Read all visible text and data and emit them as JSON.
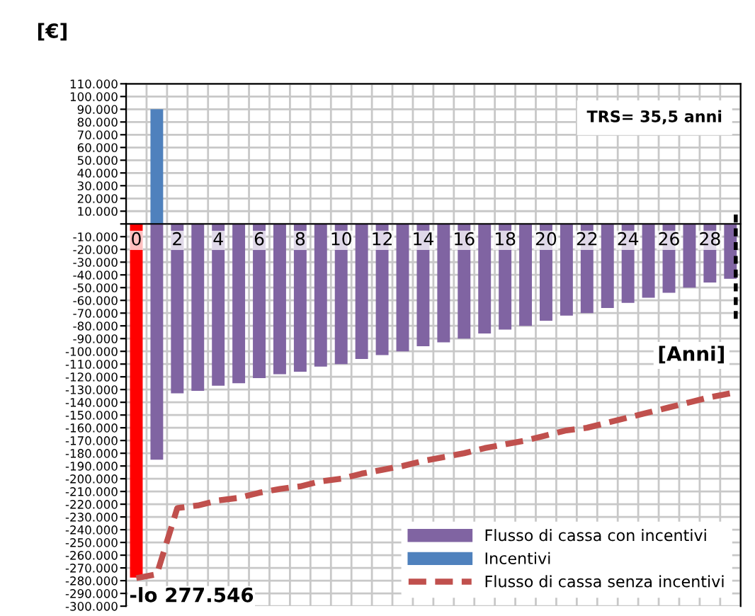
{
  "chart_data": {
    "type": "bar",
    "xlabel": "[Anni]",
    "ylabel": "[€]",
    "categories": [
      "0",
      null,
      "2",
      null,
      "4",
      null,
      "6",
      null,
      "8",
      null,
      "10",
      null,
      "12",
      null,
      "14",
      null,
      "16",
      null,
      "18",
      null,
      "20",
      null,
      "22",
      null,
      "24",
      null,
      "26",
      null,
      "28",
      null
    ],
    "series": [
      {
        "name": "Flusso di cassa con incentivi",
        "color": "#8064a2",
        "colors": [
          "#ff0000",
          "#8064a2",
          "#8064a2",
          "#8064a2",
          "#8064a2",
          "#8064a2",
          "#8064a2",
          "#8064a2",
          "#8064a2",
          "#8064a2",
          "#8064a2",
          "#8064a2",
          "#8064a2",
          "#8064a2",
          "#8064a2",
          "#8064a2",
          "#8064a2",
          "#8064a2",
          "#8064a2",
          "#8064a2",
          "#8064a2",
          "#8064a2",
          "#8064a2",
          "#8064a2",
          "#8064a2",
          "#8064a2",
          "#8064a2",
          "#8064a2",
          "#8064a2",
          "#8064a2"
        ],
        "values": [
          -277546,
          -185000,
          -133000,
          -131000,
          -127000,
          -125000,
          -121000,
          -118000,
          -116000,
          -112000,
          -110000,
          -106000,
          -103000,
          -100000,
          -96000,
          -93000,
          -90000,
          -86000,
          -83000,
          -80000,
          -76000,
          -72000,
          -70000,
          -66000,
          -62000,
          -58000,
          -54000,
          -50000,
          -46000,
          -43000
        ]
      },
      {
        "name": "Incentivi",
        "color": "#4f81bd",
        "values": [
          null,
          90000,
          null,
          null,
          null,
          null,
          null,
          null,
          null,
          null,
          null,
          null,
          null,
          null,
          null,
          null,
          null,
          null,
          null,
          null,
          null,
          null,
          null,
          null,
          null,
          null,
          null,
          null,
          null,
          null
        ]
      },
      {
        "name": "Flusso di cassa senza incentivi",
        "type": "line",
        "line_style": "dashed",
        "color": "#c0504d",
        "values": [
          -278000,
          -275000,
          -223000,
          -221000,
          -217000,
          -215000,
          -211000,
          -208000,
          -206000,
          -202000,
          -200000,
          -196000,
          -193000,
          -190000,
          -186000,
          -183000,
          -180000,
          -176000,
          -173000,
          -170000,
          -166000,
          -162000,
          -160000,
          -156000,
          -152000,
          -148000,
          -144000,
          -140000,
          -136000,
          -133000
        ]
      }
    ],
    "ylim": [
      -300000,
      110000
    ],
    "yticks": [
      {
        "value": 110000,
        "label": "110.000"
      },
      {
        "value": 100000,
        "label": "100.000"
      },
      {
        "value": 90000,
        "label": "90.000"
      },
      {
        "value": 80000,
        "label": "80.000"
      },
      {
        "value": 70000,
        "label": "70.000"
      },
      {
        "value": 60000,
        "label": "60.000"
      },
      {
        "value": 50000,
        "label": "50.000"
      },
      {
        "value": 40000,
        "label": "40.000"
      },
      {
        "value": 30000,
        "label": "30.000"
      },
      {
        "value": 20000,
        "label": "20.000"
      },
      {
        "value": 10000,
        "label": "10.000"
      },
      {
        "value": 0,
        "label": null
      },
      {
        "value": -10000,
        "label": "-10.000"
      },
      {
        "value": -20000,
        "label": "-20.000"
      },
      {
        "value": -30000,
        "label": "-30.000"
      },
      {
        "value": -40000,
        "label": "-40.000"
      },
      {
        "value": -50000,
        "label": "-50.000"
      },
      {
        "value": -60000,
        "label": "-60.000"
      },
      {
        "value": -70000,
        "label": "-70.000"
      },
      {
        "value": -80000,
        "label": "-80.000"
      },
      {
        "value": -90000,
        "label": "-90.000"
      },
      {
        "value": -100000,
        "label": "-100.000"
      },
      {
        "value": -110000,
        "label": "-110.000"
      },
      {
        "value": -120000,
        "label": "-120.000"
      },
      {
        "value": -130000,
        "label": "-130.000"
      },
      {
        "value": -140000,
        "label": "-140.000"
      },
      {
        "value": -150000,
        "label": "-150.000"
      },
      {
        "value": -160000,
        "label": "-160.000"
      },
      {
        "value": -170000,
        "label": "-170.000"
      },
      {
        "value": -180000,
        "label": "-180.000"
      },
      {
        "value": -190000,
        "label": "-190.000"
      },
      {
        "value": -200000,
        "label": "-200.000"
      },
      {
        "value": -210000,
        "label": "-210.000"
      },
      {
        "value": -220000,
        "label": "-220.000"
      },
      {
        "value": -230000,
        "label": "-230.000"
      },
      {
        "value": -240000,
        "label": "-240.000"
      },
      {
        "value": -250000,
        "label": "-250.000"
      },
      {
        "value": -260000,
        "label": "-260.000"
      },
      {
        "value": -270000,
        "label": "-270.000"
      },
      {
        "value": -280000,
        "label": "-280.000"
      },
      {
        "value": -290000,
        "label": "-290.000"
      },
      {
        "value": -300000,
        "label": "-300.000"
      }
    ],
    "annotations": [
      "TRS= 35,5 anni",
      "-lo 277.546"
    ],
    "grid": true,
    "legend": "bottom right"
  }
}
